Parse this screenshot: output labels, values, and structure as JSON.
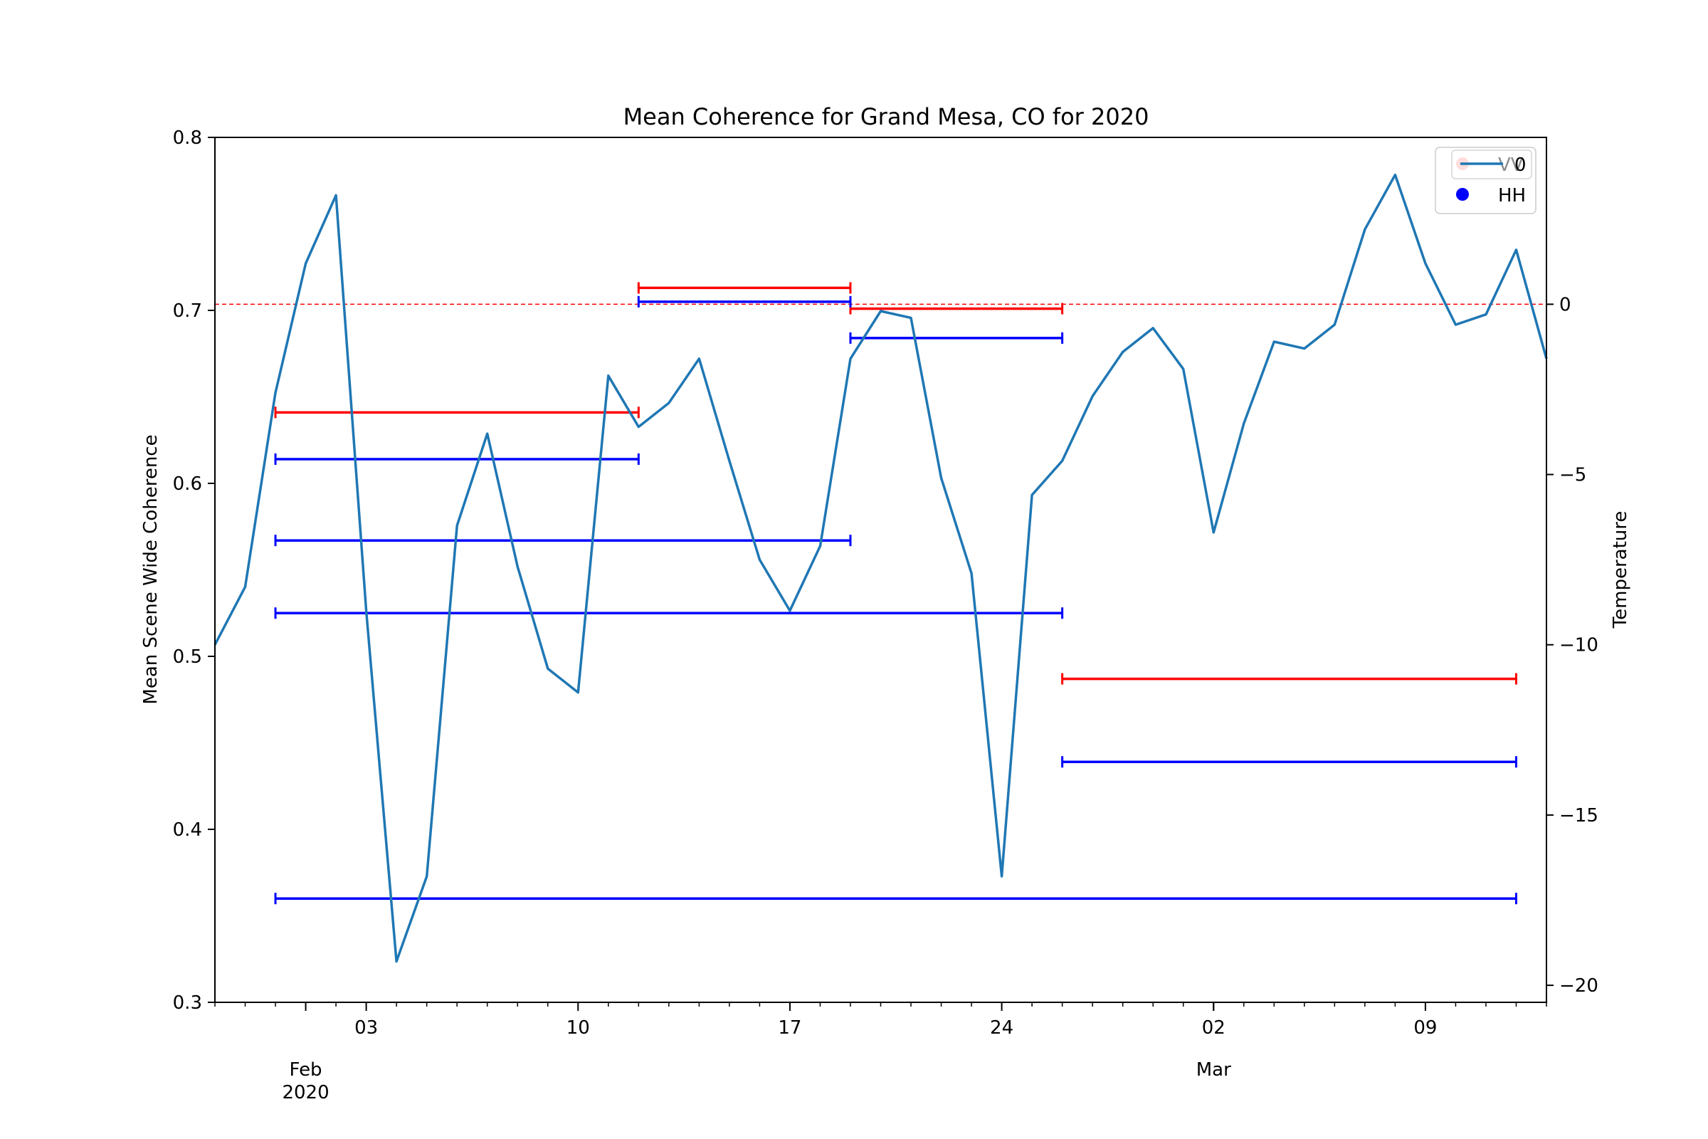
{
  "chart_data": {
    "type": "line",
    "title": "Mean Coherence for Grand Mesa, CO for 2020",
    "ylabel": "Mean Scene Wide Coherence",
    "y2label": "Temperature",
    "y2label_color": "#0000ff",
    "ylim": [
      0.3,
      0.8
    ],
    "y2lim": [
      -20.5,
      4.9
    ],
    "xlim": [
      "2020-01-29",
      "2020-03-13"
    ],
    "yticks": [
      "0.3",
      "0.4",
      "0.5",
      "0.6",
      "0.7",
      "0.8"
    ],
    "y2ticks": [
      "−20",
      "−15",
      "−10",
      "−5",
      "0"
    ],
    "xticks_minor": [
      "03",
      "10",
      "17",
      "24",
      "02",
      "09"
    ],
    "xticks_major": [
      {
        "date": "2020-02-01",
        "label1": "Feb",
        "label2": "2020"
      },
      {
        "date": "2020-03-02",
        "label1": "Mar",
        "label2": ""
      }
    ],
    "legend": {
      "placement": "top-right",
      "entries": [
        {
          "label": "VV",
          "marker_color": "#ffb3b3"
        },
        {
          "label": "HH",
          "marker_color": "#0000ff"
        },
        {
          "label": "0",
          "line_color": "#1f77b4"
        }
      ]
    },
    "temperature_reference": {
      "y2": 0,
      "color": "#ff0000",
      "style": "dashed"
    },
    "temperature_series": {
      "name": "Temperature",
      "color": "#1f77b4",
      "points": [
        [
          "2020-01-29",
          -10.0
        ],
        [
          "2020-01-30",
          -8.3
        ],
        [
          "2020-01-31",
          -2.6
        ],
        [
          "2020-02-01",
          1.2
        ],
        [
          "2020-02-02",
          3.2
        ],
        [
          "2020-02-03",
          -9.0
        ],
        [
          "2020-02-04",
          -19.3
        ],
        [
          "2020-02-05",
          -16.8
        ],
        [
          "2020-02-06",
          -6.5
        ],
        [
          "2020-02-07",
          -3.8
        ],
        [
          "2020-02-08",
          -7.7
        ],
        [
          "2020-02-09",
          -10.7
        ],
        [
          "2020-02-10",
          -11.4
        ],
        [
          "2020-02-11",
          -2.1
        ],
        [
          "2020-02-12",
          -3.6
        ],
        [
          "2020-02-13",
          -2.9
        ],
        [
          "2020-02-14",
          -1.6
        ],
        [
          "2020-02-15",
          -4.6
        ],
        [
          "2020-02-16",
          -7.5
        ],
        [
          "2020-02-17",
          -9.0
        ],
        [
          "2020-02-18",
          -7.1
        ],
        [
          "2020-02-19",
          -1.6
        ],
        [
          "2020-02-20",
          -0.2
        ],
        [
          "2020-02-21",
          -0.4
        ],
        [
          "2020-02-22",
          -5.1
        ],
        [
          "2020-02-23",
          -7.9
        ],
        [
          "2020-02-24",
          -16.8
        ],
        [
          "2020-02-25",
          -5.6
        ],
        [
          "2020-02-26",
          -4.6
        ],
        [
          "2020-02-27",
          -2.7
        ],
        [
          "2020-02-28",
          -1.4
        ],
        [
          "2020-02-29",
          -0.7
        ],
        [
          "2020-03-01",
          -1.9
        ],
        [
          "2020-03-02",
          -6.7
        ],
        [
          "2020-03-03",
          -3.5
        ],
        [
          "2020-03-04",
          -1.1
        ],
        [
          "2020-03-05",
          -1.3
        ],
        [
          "2020-03-06",
          -0.6
        ],
        [
          "2020-03-07",
          2.2
        ],
        [
          "2020-03-08",
          3.8
        ],
        [
          "2020-03-09",
          1.2
        ],
        [
          "2020-03-10",
          -0.6
        ],
        [
          "2020-03-11",
          -0.3
        ],
        [
          "2020-03-12",
          1.6
        ],
        [
          "2020-03-13",
          -1.6
        ]
      ]
    },
    "coherence_intervals": [
      {
        "pol": "VV",
        "color": "#ff0000",
        "start": "2020-01-31",
        "end": "2020-02-12",
        "value": 0.641
      },
      {
        "pol": "VV",
        "color": "#ff0000",
        "start": "2020-02-12",
        "end": "2020-02-19",
        "value": 0.713
      },
      {
        "pol": "VV",
        "color": "#ff0000",
        "start": "2020-02-19",
        "end": "2020-02-26",
        "value": 0.701
      },
      {
        "pol": "VV",
        "color": "#ff0000",
        "start": "2020-02-26",
        "end": "2020-03-12",
        "value": 0.487
      },
      {
        "pol": "HH",
        "color": "#0000ff",
        "start": "2020-01-31",
        "end": "2020-02-12",
        "value": 0.614
      },
      {
        "pol": "HH",
        "color": "#0000ff",
        "start": "2020-01-31",
        "end": "2020-02-19",
        "value": 0.567
      },
      {
        "pol": "HH",
        "color": "#0000ff",
        "start": "2020-01-31",
        "end": "2020-02-26",
        "value": 0.525
      },
      {
        "pol": "HH",
        "color": "#0000ff",
        "start": "2020-01-31",
        "end": "2020-03-12",
        "value": 0.36
      },
      {
        "pol": "HH",
        "color": "#0000ff",
        "start": "2020-02-12",
        "end": "2020-02-19",
        "value": 0.705
      },
      {
        "pol": "HH",
        "color": "#0000ff",
        "start": "2020-02-19",
        "end": "2020-02-26",
        "value": 0.684
      },
      {
        "pol": "HH",
        "color": "#0000ff",
        "start": "2020-02-26",
        "end": "2020-03-12",
        "value": 0.439
      }
    ]
  }
}
